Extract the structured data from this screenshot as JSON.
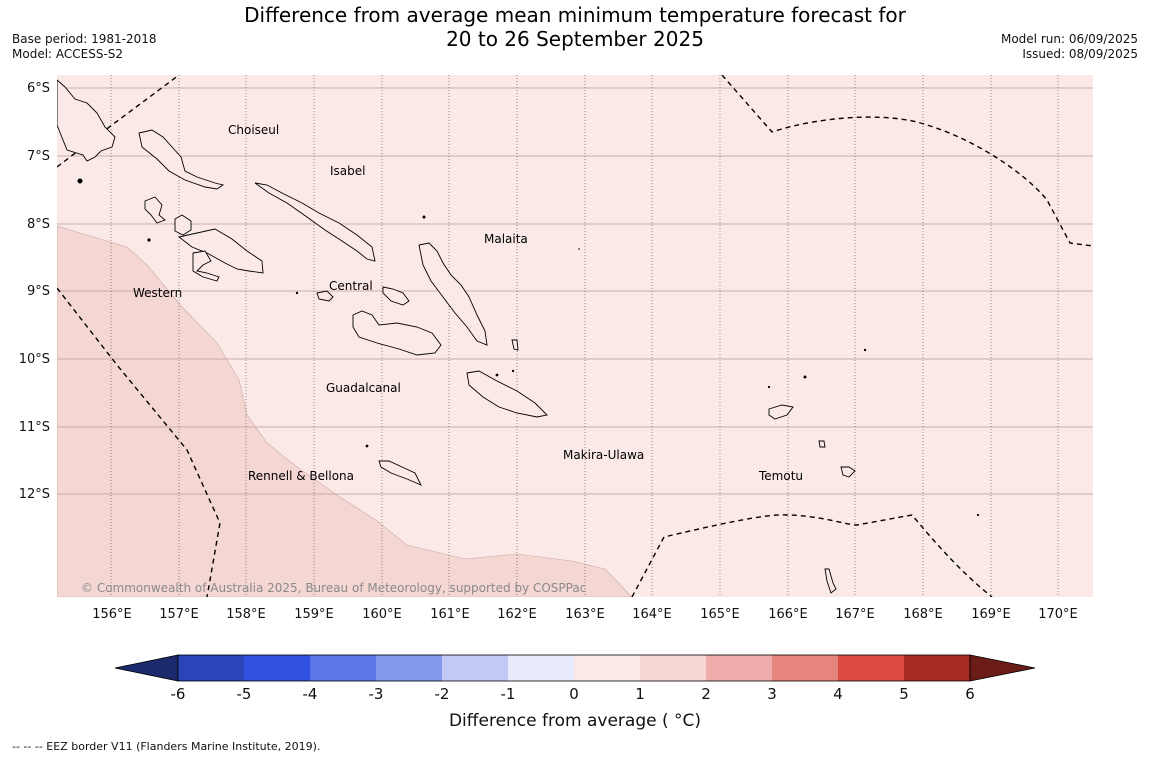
{
  "title": {
    "line1": "Difference from average mean minimum temperature forecast for",
    "line2": "20 to 26 September 2025"
  },
  "meta": {
    "base_period": "Base period: 1981-2018",
    "model": "Model: ACCESS-S2",
    "model_run": "Model run: 06/09/2025",
    "issued": "Issued: 08/09/2025"
  },
  "map": {
    "lat_labels": [
      "6°S",
      "7°S",
      "8°S",
      "9°S",
      "10°S",
      "11°S",
      "12°S"
    ],
    "lon_labels": [
      "156°E",
      "157°E",
      "158°E",
      "159°E",
      "160°E",
      "161°E",
      "162°E",
      "163°E",
      "164°E",
      "165°E",
      "166°E",
      "167°E",
      "168°E",
      "169°E",
      "170°E"
    ],
    "regions": {
      "choiseul": "Choiseul",
      "isabel": "Isabel",
      "malaita": "Malaita",
      "western": "Western",
      "central": "Central",
      "guadalcanal": "Guadalcanal",
      "makira_ulawa": "Makira-Ulawa",
      "temotu": "Temotu",
      "rennell_bellona": "Rennell & Bellona"
    },
    "copyright": "© Commonwealth of Australia 2025, Bureau of Meteorology, supported by COSPPac",
    "colors": {
      "anomaly_0_to_1": "#fbe9e7",
      "anomaly_1_to_2": "#f4d6d2",
      "land_outline": "#000000",
      "eez_border": "#000000",
      "gridline": "#b89a96"
    }
  },
  "colorbar": {
    "label": "Difference from average ( °C)",
    "ticks": [
      "-6",
      "-5",
      "-4",
      "-3",
      "-2",
      "-1",
      "0",
      "1",
      "2",
      "3",
      "4",
      "5",
      "6"
    ],
    "colors": [
      "#1a2a6c",
      "#2a45b8",
      "#3152e0",
      "#5b76e6",
      "#8397eb",
      "#c1c9f4",
      "#e8ebfb",
      "#fbe9e7",
      "#f4d6d2",
      "#eeadaa",
      "#e6847e",
      "#dc4b40",
      "#a82b24",
      "#6b1c18"
    ]
  },
  "footnote": "--  --  -- EEZ border V11 (Flanders Marine Institute, 2019)."
}
